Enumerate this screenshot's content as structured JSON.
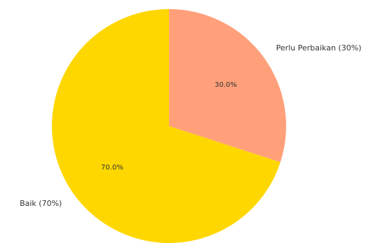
{
  "chart_data": {
    "type": "pie",
    "slices": [
      {
        "label": "Perlu Perbaikan (30%)",
        "value": 30,
        "pct_label": "30.0%",
        "color": "#FFA07A"
      },
      {
        "label": "Baik (70%)",
        "value": 70,
        "pct_label": "70.0%",
        "color": "#FFD700"
      }
    ],
    "start_angle_deg": 90,
    "direction": "clockwise"
  }
}
